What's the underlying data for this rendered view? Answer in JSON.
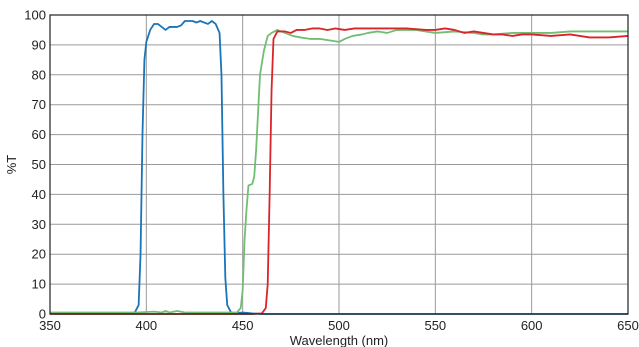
{
  "chart_data": {
    "type": "line",
    "title": "",
    "xlabel": "Wavelength (nm)",
    "ylabel": "%T",
    "xlim": [
      350,
      650
    ],
    "ylim": [
      0,
      100
    ],
    "xticks": [
      350,
      400,
      450,
      500,
      550,
      600,
      650
    ],
    "yticks": [
      0,
      10,
      20,
      30,
      40,
      50,
      60,
      70,
      80,
      90,
      100
    ],
    "grid": true,
    "legend": "none",
    "series": [
      {
        "color": "#1a74b8",
        "points": [
          [
            350,
            0.3
          ],
          [
            390,
            0.3
          ],
          [
            394,
            0.5
          ],
          [
            396,
            3
          ],
          [
            397,
            20
          ],
          [
            398,
            60
          ],
          [
            399,
            85
          ],
          [
            400,
            91
          ],
          [
            402,
            95
          ],
          [
            404,
            97
          ],
          [
            406,
            97
          ],
          [
            408,
            96
          ],
          [
            410,
            95
          ],
          [
            412,
            96
          ],
          [
            416,
            96
          ],
          [
            418,
            96.5
          ],
          [
            420,
            98
          ],
          [
            424,
            98
          ],
          [
            426,
            97.5
          ],
          [
            428,
            98
          ],
          [
            430,
            97.5
          ],
          [
            432,
            97
          ],
          [
            434,
            98
          ],
          [
            436,
            97
          ],
          [
            438,
            94
          ],
          [
            439,
            80
          ],
          [
            440,
            40
          ],
          [
            441,
            12
          ],
          [
            442,
            3
          ],
          [
            444,
            0.5
          ],
          [
            446,
            0.3
          ],
          [
            450,
            0.5
          ],
          [
            455,
            0.2
          ],
          [
            460,
            0
          ],
          [
            650,
            0
          ]
        ]
      },
      {
        "color": "#72bd72",
        "points": [
          [
            350,
            0.5
          ],
          [
            395,
            0.5
          ],
          [
            404,
            0.8
          ],
          [
            408,
            0.5
          ],
          [
            410,
            1
          ],
          [
            412,
            0.5
          ],
          [
            416,
            1
          ],
          [
            420,
            0.5
          ],
          [
            440,
            0.5
          ],
          [
            447,
            0.5
          ],
          [
            449,
            2
          ],
          [
            450,
            8
          ],
          [
            451,
            25
          ],
          [
            452,
            35
          ],
          [
            453,
            43
          ],
          [
            455,
            43.5
          ],
          [
            456,
            46
          ],
          [
            457,
            55
          ],
          [
            459,
            80
          ],
          [
            461,
            88
          ],
          [
            463,
            93
          ],
          [
            465,
            94
          ],
          [
            468,
            95
          ],
          [
            472,
            94
          ],
          [
            476,
            93
          ],
          [
            480,
            92.5
          ],
          [
            485,
            92
          ],
          [
            490,
            92
          ],
          [
            495,
            91.5
          ],
          [
            500,
            91
          ],
          [
            503,
            92
          ],
          [
            507,
            93
          ],
          [
            512,
            93.5
          ],
          [
            515,
            94
          ],
          [
            520,
            94.5
          ],
          [
            525,
            94
          ],
          [
            530,
            95
          ],
          [
            540,
            95
          ],
          [
            545,
            94.5
          ],
          [
            550,
            94
          ],
          [
            560,
            94.5
          ],
          [
            570,
            94
          ],
          [
            575,
            93.5
          ],
          [
            580,
            93.5
          ],
          [
            590,
            94
          ],
          [
            600,
            94
          ],
          [
            610,
            94
          ],
          [
            620,
            94.5
          ],
          [
            630,
            94.5
          ],
          [
            640,
            94.5
          ],
          [
            650,
            94.5
          ]
        ]
      },
      {
        "color": "#d9242a",
        "points": [
          [
            350,
            0
          ],
          [
            455,
            0
          ],
          [
            460,
            0.2
          ],
          [
            462,
            2
          ],
          [
            463,
            10
          ],
          [
            464,
            40
          ],
          [
            465,
            75
          ],
          [
            466,
            92
          ],
          [
            468,
            94.5
          ],
          [
            472,
            94.5
          ],
          [
            475,
            94
          ],
          [
            478,
            95
          ],
          [
            482,
            95
          ],
          [
            486,
            95.5
          ],
          [
            490,
            95.5
          ],
          [
            494,
            95
          ],
          [
            498,
            95.5
          ],
          [
            503,
            95
          ],
          [
            508,
            95.5
          ],
          [
            515,
            95.5
          ],
          [
            525,
            95.5
          ],
          [
            535,
            95.5
          ],
          [
            545,
            95
          ],
          [
            550,
            95
          ],
          [
            555,
            95.5
          ],
          [
            560,
            95
          ],
          [
            565,
            94
          ],
          [
            570,
            94.5
          ],
          [
            575,
            94
          ],
          [
            580,
            93.5
          ],
          [
            585,
            93.5
          ],
          [
            590,
            93
          ],
          [
            595,
            93.5
          ],
          [
            600,
            93.5
          ],
          [
            610,
            93
          ],
          [
            620,
            93.5
          ],
          [
            630,
            92.5
          ],
          [
            640,
            92.5
          ],
          [
            650,
            93
          ]
        ]
      }
    ]
  },
  "colors": {
    "frame": "#222222",
    "grid": "#9a9a9a",
    "background": "#ffffff"
  }
}
